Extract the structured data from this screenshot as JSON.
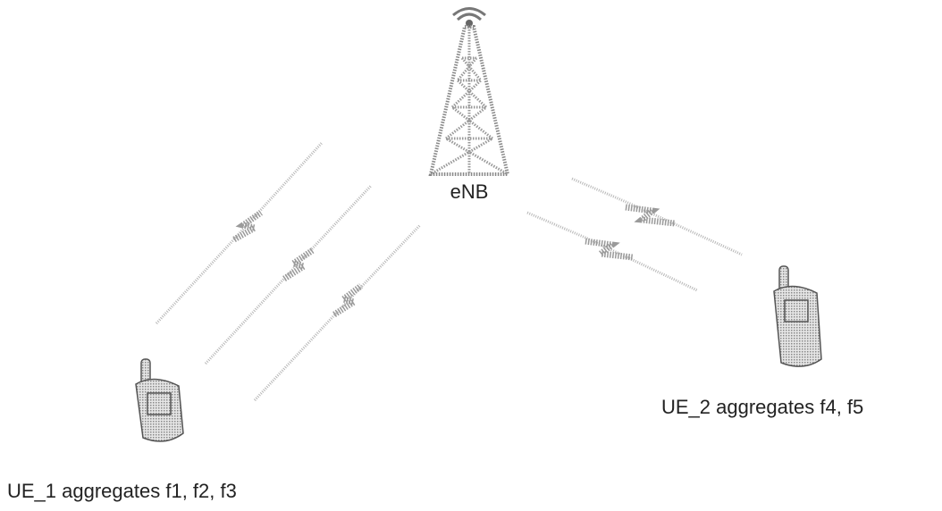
{
  "nodes": [
    {
      "label": "eNB"
    },
    {
      "label": "UE_1 aggregates f1, f2, f3"
    },
    {
      "label": "UE_2 aggregates f4, f5"
    }
  ]
}
